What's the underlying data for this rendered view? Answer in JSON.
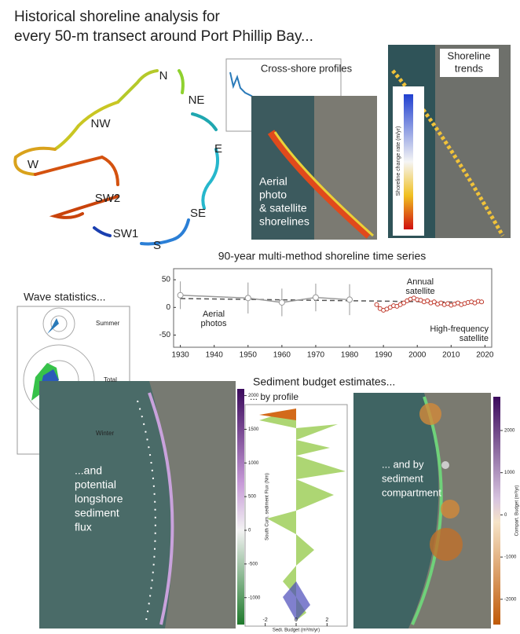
{
  "header": {
    "line1": "Historical shoreline analysis for",
    "line2": "every 50-m transect around Port Phillip Bay..."
  },
  "regions": [
    "N",
    "NE",
    "NW",
    "E",
    "W",
    "SW2",
    "SE",
    "SW1",
    "S"
  ],
  "panels": {
    "cross_shore": "Cross-shore profiles",
    "aerial": [
      "Aerial",
      "photo",
      "& satellite",
      "shorelines"
    ],
    "trends": [
      "Shoreline",
      "trends"
    ],
    "trends_colorbar": "Shoreline change rate (m/yr)",
    "wave_title": "Wave statistics...",
    "wave_labels": [
      "Summer",
      "Total",
      "Winter"
    ],
    "longshore": [
      "...and",
      "potential",
      "longshore",
      "sediment",
      "flux"
    ],
    "sediment_title": "Sediment budget estimates...",
    "by_profile": "... by profile",
    "compartment": [
      "... and by",
      "sediment",
      "compartment"
    ]
  },
  "flux_colorbar": {
    "label": "South Cum. sediment Flux (Nm)",
    "lim": [
      -1400,
      2100
    ],
    "ticks": [
      2000,
      1500,
      1000,
      500,
      0,
      -500,
      -1000
    ]
  },
  "profile_axis": {
    "label": "Sedi. Budget (m³/m/yr)",
    "lim": [
      -3,
      3
    ],
    "ticks": [
      -2,
      0,
      2
    ]
  },
  "compartment_colorbar": {
    "label": "Compart. Budget (m³/yr)",
    "lim": [
      -2600,
      2800
    ],
    "ticks": [
      2000,
      1000,
      0,
      -1000,
      -2000
    ]
  },
  "chart_data": {
    "type": "line",
    "title": "90-year multi-method shoreline time series",
    "xlim": [
      1928,
      2022
    ],
    "xticks": [
      1930,
      1940,
      1950,
      1960,
      1970,
      1980,
      1990,
      2000,
      2010,
      2020
    ],
    "ylim": [
      -72,
      70
    ],
    "yticks": [
      50,
      0,
      -50
    ],
    "annotations": {
      "aerial": [
        "Aerial",
        "photos"
      ],
      "annual": [
        "Annual",
        "satellite"
      ],
      "hf": [
        "High-frequency",
        "satellite"
      ]
    },
    "series": [
      {
        "name": "Aerial photos",
        "color": "#999999",
        "x": [
          1930,
          1950,
          1960,
          1970,
          1980
        ],
        "values": [
          22,
          17,
          9,
          18,
          14
        ],
        "errors": [
          25,
          28,
          25,
          25,
          28
        ]
      },
      {
        "name": "Annual satellite",
        "color": "#c0392b",
        "x": [
          1988,
          1989,
          1990,
          1991,
          1992,
          1993,
          1994,
          1995,
          1996,
          1997,
          1998,
          1999,
          2000,
          2001,
          2002,
          2003,
          2004,
          2005,
          2006,
          2007,
          2008,
          2009,
          2010,
          2011,
          2012,
          2013,
          2014,
          2015,
          2016,
          2017,
          2018,
          2019
        ],
        "values": [
          5,
          -2,
          -5,
          -3,
          0,
          3,
          2,
          5,
          8,
          12,
          15,
          17,
          14,
          13,
          10,
          12,
          8,
          10,
          6,
          8,
          5,
          7,
          4,
          6,
          8,
          5,
          7,
          9,
          10,
          8,
          11,
          10
        ]
      }
    ]
  }
}
